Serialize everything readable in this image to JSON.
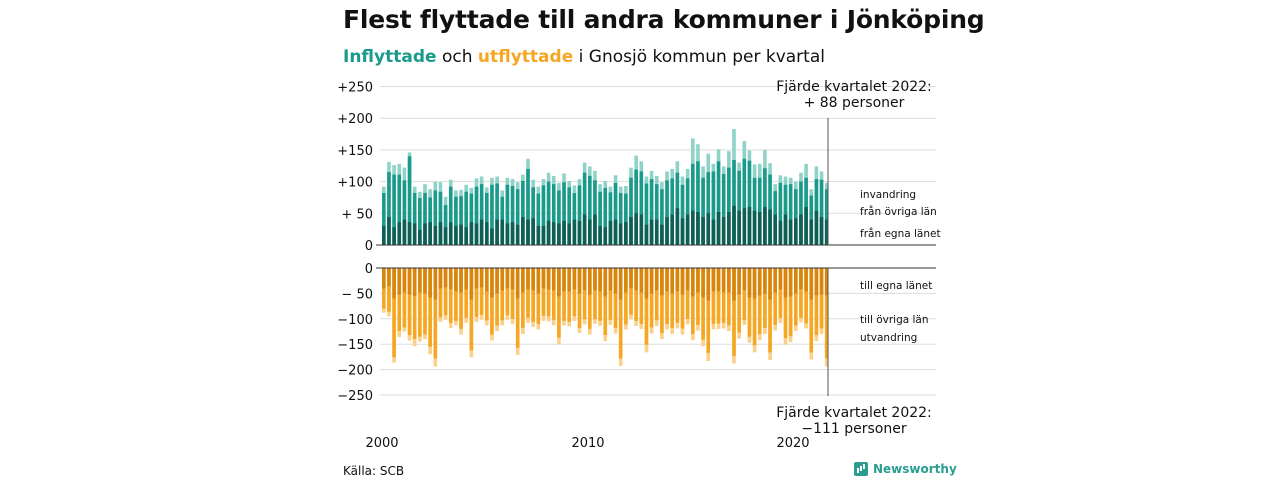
{
  "header": {
    "title": "Flest flyttade till andra kommuner i Jönköping",
    "subtitle_in": "Inflyttade",
    "subtitle_mid": " och ",
    "subtitle_out": "utflyttade",
    "subtitle_rest": " i Gnosjö kommun per kvartal"
  },
  "footer": {
    "source": "Källa: SCB",
    "logo": "Newsworthy"
  },
  "colors": {
    "in_dark": "#0f5f55",
    "in_mid": "#1a9a8a",
    "in_light": "#8fd3c8",
    "out_dark": "#d9860f",
    "out_mid": "#f5a623",
    "out_light": "#fbd08a"
  },
  "chart_data": {
    "type": "bar",
    "x_start": 2000,
    "quarters_per_year": 4,
    "x_ticks": [
      "2000",
      "2010",
      "2020"
    ],
    "y_ticks_in": [
      "+250",
      "+200",
      "+150",
      "+100",
      "+ 50",
      "0"
    ],
    "y_ticks_out": [
      "0",
      "− 50",
      "−100",
      "−150",
      "−200",
      "−250"
    ],
    "ylim_in": [
      0,
      250
    ],
    "ylim_out": [
      -250,
      0
    ],
    "annotations": {
      "in_line1": "Fjärde kvartalet 2022:",
      "in_line2": "+ 88 personer",
      "out_line1": "Fjärde kvartalet 2022:",
      "out_line2": "−111 personer"
    },
    "series_labels": {
      "invandring": "invandring",
      "fran_ovriga": "från övriga län",
      "fran_egna": "från egna länet",
      "till_egna": "till egna länet",
      "till_ovriga": "till övriga län",
      "utvandring": "utvandring"
    },
    "inflow_totals": [
      92,
      131,
      126,
      128,
      122,
      146,
      92,
      84,
      96,
      88,
      100,
      99,
      76,
      103,
      86,
      87,
      95,
      90,
      105,
      108,
      91,
      106,
      108,
      86,
      106,
      104,
      99,
      111,
      136,
      103,
      92,
      104,
      114,
      109,
      98,
      113,
      101,
      94,
      104,
      130,
      124,
      117,
      96,
      101,
      92,
      110,
      92,
      93,
      122,
      141,
      132,
      108,
      117,
      109,
      99,
      116,
      120,
      132,
      108,
      120,
      168,
      159,
      124,
      144,
      128,
      151,
      124,
      148,
      183,
      130,
      164,
      149,
      127,
      128,
      150,
      129,
      96,
      110,
      108,
      106,
      100,
      114,
      128,
      88,
      124,
      116,
      98
    ],
    "inflow_from_other": [
      82,
      115,
      111,
      111,
      102,
      140,
      82,
      74,
      82,
      75,
      86,
      84,
      63,
      92,
      76,
      77,
      84,
      81,
      92,
      96,
      82,
      95,
      97,
      76,
      95,
      93,
      88,
      101,
      120,
      91,
      81,
      94,
      100,
      96,
      86,
      99,
      91,
      82,
      94,
      114,
      109,
      102,
      84,
      90,
      83,
      98,
      82,
      81,
      106,
      119,
      116,
      97,
      104,
      96,
      88,
      102,
      105,
      114,
      95,
      105,
      128,
      132,
      106,
      115,
      116,
      132,
      112,
      122,
      134,
      117,
      136,
      133,
      106,
      106,
      121,
      111,
      85,
      98,
      95,
      96,
      88,
      100,
      106,
      78,
      104,
      103,
      88
    ],
    "inflow_from_own": [
      30,
      44,
      28,
      36,
      40,
      36,
      34,
      24,
      34,
      36,
      30,
      36,
      28,
      36,
      30,
      32,
      28,
      36,
      34,
      40,
      36,
      26,
      40,
      40,
      34,
      36,
      32,
      44,
      40,
      42,
      30,
      30,
      38,
      36,
      34,
      38,
      34,
      40,
      38,
      48,
      40,
      48,
      30,
      28,
      38,
      40,
      34,
      36,
      44,
      50,
      48,
      32,
      40,
      40,
      32,
      44,
      48,
      58,
      42,
      48,
      54,
      52,
      44,
      50,
      40,
      52,
      44,
      52,
      62,
      54,
      58,
      60,
      54,
      52,
      60,
      56,
      48,
      38,
      48,
      40,
      42,
      48,
      60,
      40,
      54,
      44,
      40
    ],
    "outflow_totals": [
      88,
      95,
      186,
      136,
      125,
      143,
      154,
      145,
      140,
      170,
      194,
      106,
      102,
      118,
      113,
      131,
      108,
      176,
      106,
      102,
      113,
      143,
      124,
      113,
      102,
      110,
      171,
      130,
      108,
      116,
      121,
      104,
      105,
      113,
      150,
      113,
      115,
      104,
      128,
      111,
      131,
      110,
      114,
      144,
      112,
      129,
      193,
      121,
      101,
      114,
      120,
      166,
      129,
      114,
      140,
      121,
      130,
      119,
      131,
      111,
      142,
      123,
      154,
      183,
      121,
      120,
      119,
      124,
      188,
      139,
      112,
      147,
      166,
      142,
      130,
      181,
      123,
      108,
      151,
      146,
      124,
      107,
      119,
      180,
      144,
      130,
      194
    ],
    "outflow_to_other": [
      80,
      86,
      176,
      124,
      117,
      132,
      140,
      135,
      131,
      155,
      178,
      97,
      93,
      108,
      104,
      120,
      98,
      162,
      96,
      92,
      103,
      131,
      113,
      103,
      93,
      100,
      157,
      118,
      98,
      106,
      110,
      94,
      95,
      102,
      137,
      104,
      106,
      95,
      118,
      101,
      120,
      101,
      104,
      132,
      102,
      118,
      178,
      111,
      92,
      104,
      110,
      151,
      117,
      103,
      128,
      110,
      118,
      108,
      119,
      100,
      130,
      112,
      141,
      167,
      110,
      109,
      108,
      113,
      173,
      127,
      102,
      135,
      152,
      130,
      118,
      166,
      112,
      98,
      138,
      134,
      113,
      98,
      109,
      166,
      132,
      119,
      178
    ],
    "outflow_to_own": [
      40,
      36,
      60,
      52,
      48,
      52,
      55,
      48,
      50,
      58,
      62,
      40,
      38,
      42,
      46,
      48,
      42,
      62,
      40,
      38,
      46,
      58,
      50,
      44,
      40,
      42,
      60,
      48,
      42,
      44,
      50,
      40,
      42,
      44,
      56,
      46,
      46,
      42,
      50,
      44,
      52,
      44,
      46,
      56,
      44,
      50,
      62,
      48,
      40,
      44,
      48,
      60,
      50,
      44,
      54,
      46,
      50,
      46,
      52,
      44,
      56,
      48,
      58,
      64,
      46,
      46,
      48,
      48,
      64,
      52,
      44,
      58,
      60,
      54,
      50,
      62,
      48,
      42,
      58,
      56,
      50,
      42,
      46,
      62,
      54,
      52,
      54
    ]
  }
}
